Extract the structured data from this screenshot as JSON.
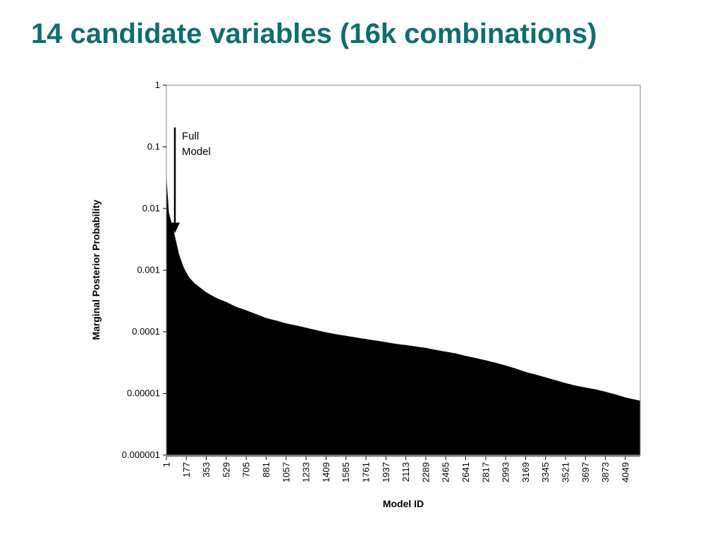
{
  "slide": {
    "title": "14 candidate variables (16k combinations)"
  },
  "chart_data": {
    "type": "area",
    "title": "",
    "xlabel": "Model ID",
    "ylabel": "Marginal Posterior Probability",
    "yscale": "log",
    "ylim": [
      1e-06,
      1
    ],
    "xlim": [
      1,
      4180
    ],
    "grid": false,
    "legend": "none",
    "fill_color": "#000000",
    "y_tick_labels": [
      "1",
      "0.1",
      "0.01",
      "0.001",
      "0.0001",
      "0.00001",
      "0.000001"
    ],
    "x_tick_labels": [
      "1",
      "177",
      "353",
      "529",
      "705",
      "881",
      "1057",
      "1233",
      "1409",
      "1585",
      "1761",
      "1937",
      "2113",
      "2289",
      "2465",
      "2641",
      "2817",
      "2993",
      "3169",
      "3345",
      "3521",
      "3697",
      "3873",
      "4049"
    ],
    "x": [
      1,
      20,
      60,
      110,
      150,
      200,
      250,
      353,
      440,
      529,
      617,
      705,
      793,
      881,
      969,
      1057,
      1145,
      1233,
      1321,
      1409,
      1497,
      1585,
      1673,
      1761,
      1849,
      1937,
      2025,
      2113,
      2201,
      2289,
      2377,
      2465,
      2553,
      2641,
      2729,
      2817,
      2905,
      2993,
      3081,
      3169,
      3257,
      3345,
      3433,
      3521,
      3609,
      3697,
      3785,
      3873,
      3961,
      4049,
      4137,
      4180
    ],
    "values": [
      0.028,
      0.0085,
      0.0045,
      0.0018,
      0.0011,
      0.00075,
      0.0006,
      0.00043,
      0.00035,
      0.0003,
      0.00025,
      0.00022,
      0.00019,
      0.000165,
      0.00015,
      0.000135,
      0.000125,
      0.000115,
      0.000105,
      9.7e-05,
      9e-05,
      8.5e-05,
      8e-05,
      7.5e-05,
      7.1e-05,
      6.7e-05,
      6.3e-05,
      6e-05,
      5.7e-05,
      5.4e-05,
      5e-05,
      4.7e-05,
      4.4e-05,
      4e-05,
      3.7e-05,
      3.4e-05,
      3.1e-05,
      2.8e-05,
      2.5e-05,
      2.2e-05,
      2e-05,
      1.8e-05,
      1.62e-05,
      1.45e-05,
      1.32e-05,
      1.23e-05,
      1.15e-05,
      1.05e-05,
      9.5e-06,
      8.5e-06,
      7.8e-06,
      7.5e-06
    ],
    "annotations": [
      {
        "text_line1": "Full",
        "text_line2": "Model",
        "arrow": "down"
      }
    ]
  }
}
